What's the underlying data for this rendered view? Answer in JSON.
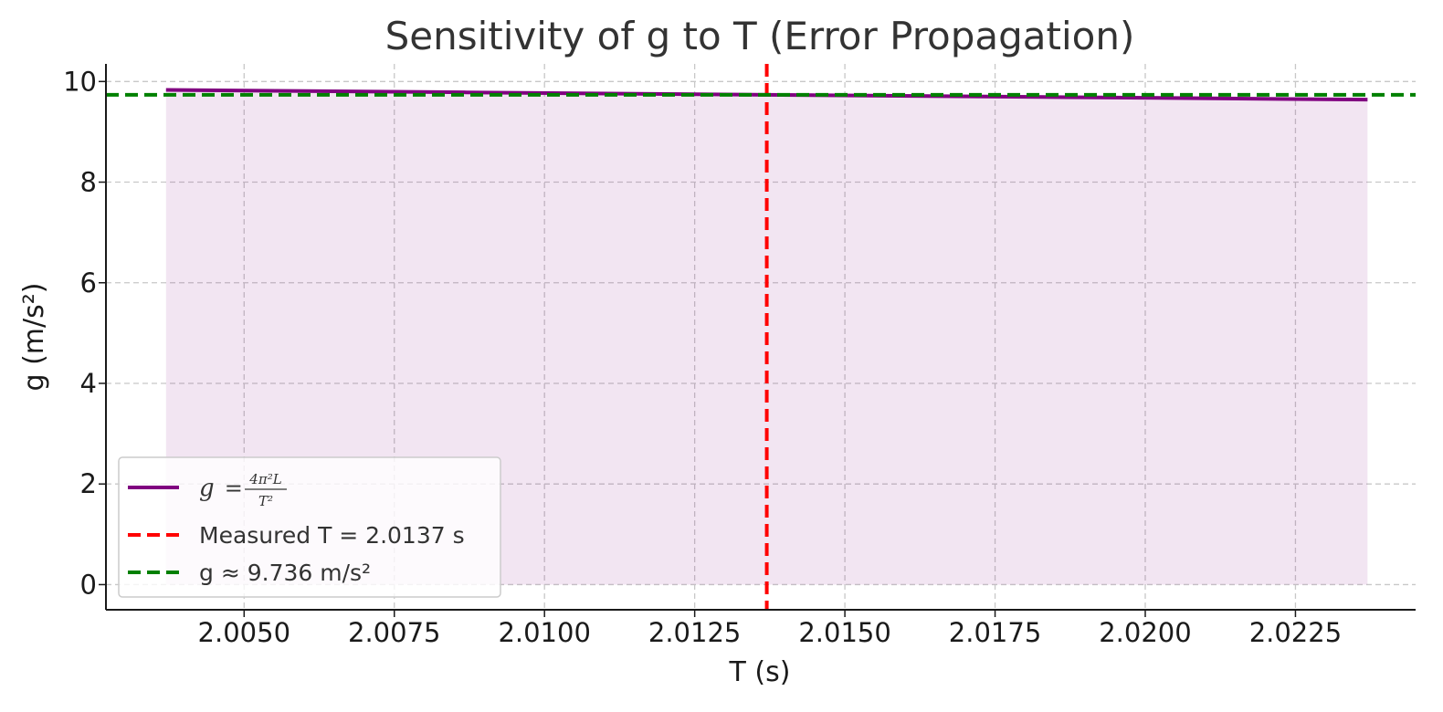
{
  "chart_data": {
    "type": "line",
    "title": "Sensitivity of g to T (Error Propagation)",
    "xlabel": "T (s)",
    "ylabel": "g (m/s²)",
    "xlim": [
      2.0027,
      2.0245
    ],
    "ylim": [
      -0.5,
      10.35
    ],
    "xticks": [
      2.005,
      2.0075,
      2.01,
      2.0125,
      2.015,
      2.0175,
      2.02,
      2.0225
    ],
    "xtick_labels": [
      "2.0050",
      "2.0075",
      "2.0100",
      "2.0125",
      "2.0150",
      "2.0175",
      "2.0200",
      "2.0225"
    ],
    "yticks": [
      0,
      2,
      4,
      6,
      8,
      10
    ],
    "ytick_labels": [
      "0",
      "2",
      "4",
      "6",
      "8",
      "10"
    ],
    "grid": true,
    "legend_position": "lower-left",
    "series": [
      {
        "name": "g = 4π²L / T²",
        "color": "#800080",
        "fill_to_zero": true,
        "fill_color": "#800080",
        "fill_opacity": 0.1,
        "x": [
          2.0037,
          2.0087,
          2.0137,
          2.0187,
          2.0237
        ],
        "y": [
          9.833,
          9.784,
          9.736,
          9.688,
          9.64
        ]
      }
    ],
    "reference_lines": [
      {
        "orientation": "vertical",
        "value": 2.0137,
        "color": "#ff0000",
        "label": "Measured T = 2.0137 s"
      },
      {
        "orientation": "horizontal",
        "value": 9.736,
        "color": "#008000",
        "label": "g ≈ 9.736 m/s²"
      }
    ],
    "legend": {
      "formula": {
        "lhs": "g",
        "eq": "=",
        "num": "4π²L",
        "den": "T²"
      },
      "measured_label": "Measured T = 2.0137 s",
      "g_label": "g ≈ 9.736 m/s²"
    }
  }
}
